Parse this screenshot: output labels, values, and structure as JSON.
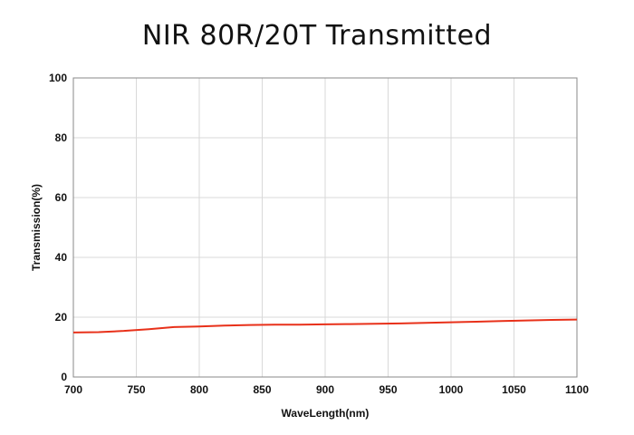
{
  "chart_data": {
    "type": "line",
    "title": "NIR 80R/20T Transmitted",
    "xlabel": "WaveLength(nm)",
    "ylabel": "Transmission(%)",
    "xlim": [
      700,
      1100
    ],
    "ylim": [
      0,
      100
    ],
    "xticks": [
      "700",
      "750",
      "800",
      "850",
      "900",
      "950",
      "1000",
      "1050",
      "1100"
    ],
    "yticks": [
      "0",
      "20",
      "40",
      "60",
      "80",
      "100"
    ],
    "grid": true,
    "legend": "none",
    "colors": {
      "line": "#e8311a",
      "grid": "#d9d9d9",
      "axis": "#888888"
    },
    "series": [
      {
        "x": [
          700,
          720,
          740,
          760,
          780,
          800,
          820,
          840,
          860,
          880,
          900,
          920,
          940,
          960,
          980,
          1000,
          1020,
          1040,
          1060,
          1080,
          1100
        ],
        "y": [
          14.9,
          15.0,
          15.4,
          16.0,
          16.7,
          16.9,
          17.2,
          17.4,
          17.5,
          17.5,
          17.6,
          17.7,
          17.8,
          17.9,
          18.1,
          18.3,
          18.5,
          18.7,
          18.9,
          19.1,
          19.2
        ]
      }
    ]
  }
}
